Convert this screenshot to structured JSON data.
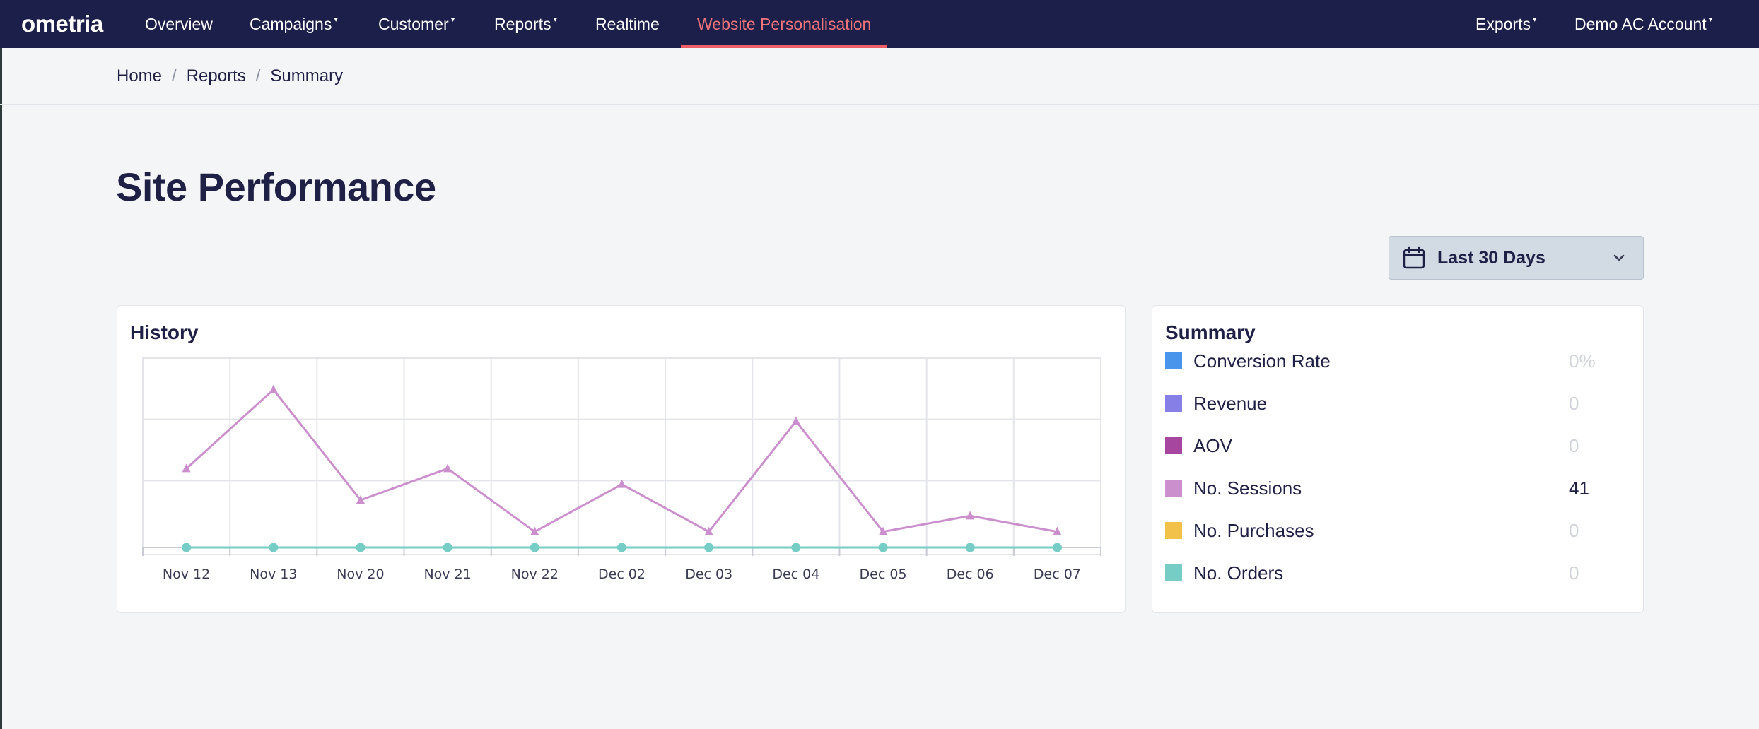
{
  "app": {
    "logo_text": "ometria"
  },
  "nav": {
    "items": [
      {
        "label": "Overview",
        "caret": ""
      },
      {
        "label": "Campaigns",
        "caret": "▾"
      },
      {
        "label": "Customer",
        "caret": "▾"
      },
      {
        "label": "Reports",
        "caret": "▾"
      },
      {
        "label": "Realtime",
        "caret": ""
      },
      {
        "label": "Website Personalisation",
        "caret": "",
        "active": true
      }
    ],
    "right_items": [
      {
        "label": "Exports",
        "caret": "▾"
      },
      {
        "label": "Demo AC Account",
        "caret": "▾"
      }
    ]
  },
  "breadcrumb": {
    "items": [
      "Home",
      "Reports",
      "Summary"
    ],
    "separator": "/"
  },
  "page": {
    "title": "Site Performance"
  },
  "date_range": {
    "selected": "Last 30 Days",
    "icon": "calendar-icon"
  },
  "history": {
    "title": "History"
  },
  "chart_data": {
    "type": "line",
    "categories": [
      "Nov 12",
      "Nov 13",
      "Nov 20",
      "Nov 21",
      "Nov 22",
      "Dec 02",
      "Dec 03",
      "Dec 04",
      "Dec 05",
      "Dec 06",
      "Dec 07"
    ],
    "series": [
      {
        "name": "No. Sessions",
        "color": "#cc8fcd",
        "marker": "triangle",
        "values": [
          5,
          10,
          3,
          5,
          1,
          4,
          1,
          8,
          1,
          2,
          1
        ]
      },
      {
        "name": "No. Orders",
        "color": "#76cdc6",
        "marker": "circle",
        "values": [
          0,
          0,
          0,
          0,
          0,
          0,
          0,
          0,
          0,
          0,
          0
        ]
      }
    ],
    "ylim": [
      0,
      12
    ],
    "grid": true,
    "title": "",
    "xlabel": "",
    "ylabel": ""
  },
  "summary": {
    "title": "Summary",
    "rows": [
      {
        "label": "Conversion Rate",
        "value": "0%",
        "color": "#4a95ec",
        "muted": true
      },
      {
        "label": "Revenue",
        "value": "0",
        "color": "#8680e6",
        "muted": true
      },
      {
        "label": "AOV",
        "value": "0",
        "color": "#a6469f",
        "muted": true
      },
      {
        "label": "No. Sessions",
        "value": "41",
        "color": "#cc8fcd",
        "muted": false
      },
      {
        "label": "No. Purchases",
        "value": "0",
        "color": "#f2c14a",
        "muted": true
      },
      {
        "label": "No. Orders",
        "value": "0",
        "color": "#76cdc6",
        "muted": true
      }
    ]
  }
}
